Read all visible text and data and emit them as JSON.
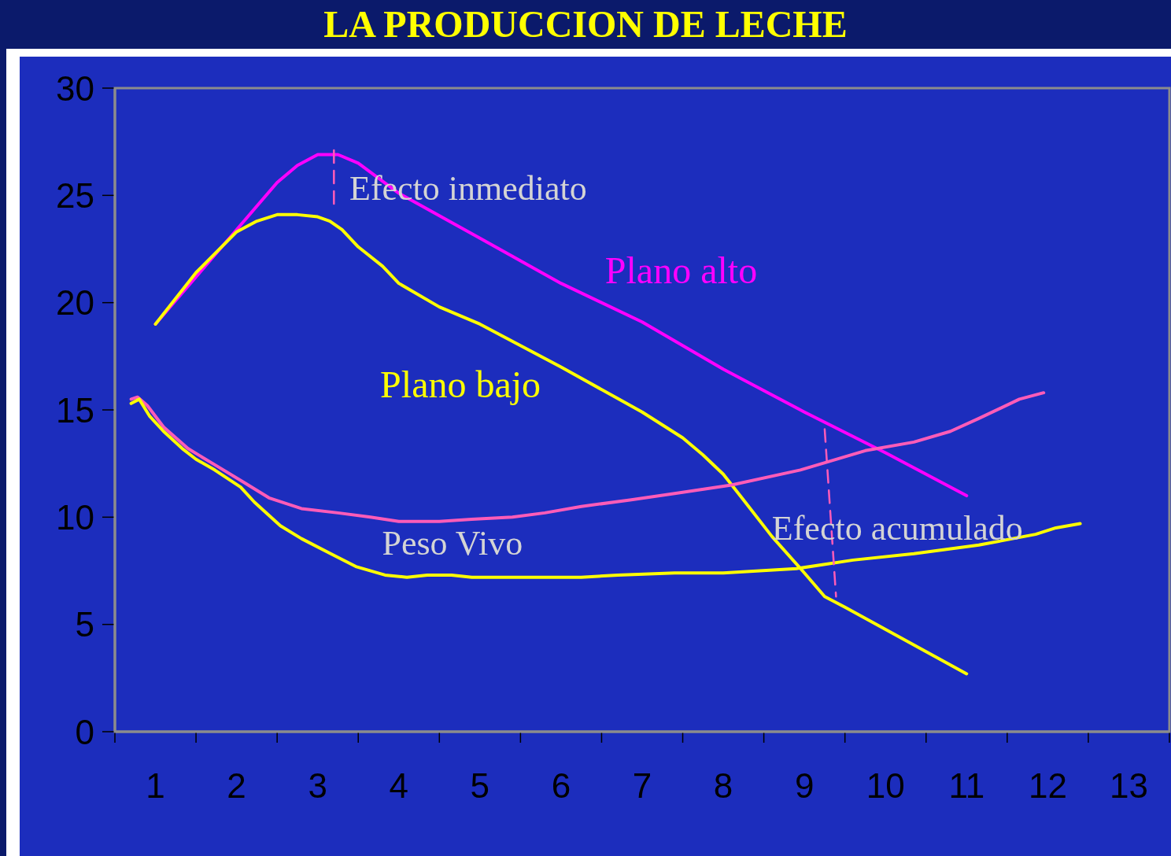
{
  "chart_data": {
    "type": "line",
    "title": "LA PRODUCCION DE LECHE",
    "xlim": [
      0.5,
      13.5
    ],
    "xticks": [
      {
        "value": 0.5,
        "label": null
      },
      1,
      {
        "value": 1.5,
        "label": null
      },
      2,
      {
        "value": 2.5,
        "label": null
      },
      3,
      {
        "value": 3.5,
        "label": null
      },
      4,
      {
        "value": 4.5,
        "label": null
      },
      5,
      {
        "value": 5.5,
        "label": null
      },
      6,
      {
        "value": 6.5,
        "label": null
      },
      7,
      {
        "value": 7.5,
        "label": null
      },
      8,
      {
        "value": 8.5,
        "label": null
      },
      9,
      {
        "value": 9.5,
        "label": null
      },
      10,
      {
        "value": 10.5,
        "label": null
      },
      11,
      {
        "value": 11.5,
        "label": null
      },
      12,
      {
        "value": 12.5,
        "label": null
      },
      13,
      {
        "value": 13.5,
        "label": null
      }
    ],
    "ylim": [
      0,
      30
    ],
    "yticks": [
      0,
      5,
      10,
      15,
      20,
      25,
      30
    ],
    "line_style": "solid",
    "series": [
      {
        "name": "Plano alto",
        "color": "#ff00ff",
        "x": [
          1,
          1.5,
          2,
          2.5,
          2.75,
          3,
          3.25,
          3.5,
          4,
          5,
          6,
          7,
          8,
          9,
          10,
          11
        ],
        "values": [
          19.0,
          21.2,
          23.4,
          25.6,
          26.4,
          26.9,
          26.9,
          26.5,
          25.1,
          23.0,
          20.9,
          19.1,
          16.9,
          14.9,
          13.0,
          11.0
        ]
      },
      {
        "name": "Plano bajo",
        "color": "#ffff00",
        "x": [
          1,
          1.5,
          2,
          2.25,
          2.5,
          2.75,
          3,
          3.15,
          3.3,
          3.5,
          3.8,
          4,
          4.5,
          5,
          6,
          7,
          7.5,
          7.75,
          8,
          8.25,
          8.6,
          9,
          9.25,
          9.5,
          11
        ],
        "values": [
          19.0,
          21.4,
          23.3,
          23.8,
          24.1,
          24.1,
          24.0,
          23.8,
          23.4,
          22.6,
          21.7,
          20.9,
          19.8,
          19.0,
          17.0,
          14.9,
          13.7,
          12.9,
          12.0,
          10.8,
          9.1,
          7.4,
          6.3,
          5.8,
          2.7
        ]
      },
      {
        "color": "#ff5cb8",
        "x": [
          0.7,
          0.78,
          0.9,
          1.1,
          1.4,
          1.75,
          2.1,
          2.4,
          2.8,
          3.25,
          3.65,
          4,
          4.5,
          4.9,
          5.4,
          5.8,
          6.25,
          6.85,
          7.4,
          8.1,
          8.95,
          9.75,
          10.35,
          10.8,
          11.15,
          11.65,
          11.95
        ],
        "values": [
          15.5,
          15.6,
          15.2,
          14.2,
          13.2,
          12.4,
          11.6,
          10.9,
          10.4,
          10.2,
          10.0,
          9.8,
          9.8,
          9.9,
          10.0,
          10.2,
          10.5,
          10.8,
          11.1,
          11.5,
          12.2,
          13.1,
          13.5,
          14.0,
          14.6,
          15.5,
          15.8
        ]
      },
      {
        "color": "#ffff00",
        "x": [
          0.7,
          0.8,
          0.93,
          1.1,
          1.33,
          1.5,
          1.73,
          2.05,
          2.22,
          2.54,
          2.8,
          3.16,
          3.47,
          3.83,
          4.1,
          4.35,
          4.65,
          4.9,
          6.25,
          6.7,
          7.4,
          8.0,
          8.9,
          9.6,
          10.35,
          11.15,
          11.85,
          12.1,
          12.4
        ],
        "values": [
          15.3,
          15.5,
          14.7,
          14.0,
          13.2,
          12.7,
          12.2,
          11.4,
          10.7,
          9.6,
          9.0,
          8.3,
          7.7,
          7.3,
          7.2,
          7.3,
          7.3,
          7.2,
          7.2,
          7.3,
          7.4,
          7.4,
          7.6,
          8.0,
          8.3,
          8.7,
          9.2,
          9.5,
          9.7
        ]
      },
      {
        "color": "#ff5cb8",
        "line_style": "dashed",
        "x": [
          3.2,
          3.2
        ],
        "values": [
          27.1,
          24.4
        ]
      },
      {
        "color": "#ff5cb8",
        "line_style": "dashed",
        "x": [
          9.25,
          9.39
        ],
        "values": [
          14.1,
          6.3
        ]
      }
    ],
    "annotations": [
      "Efecto inmediato",
      "Efecto acumulado",
      "Peso Vivo"
    ]
  }
}
